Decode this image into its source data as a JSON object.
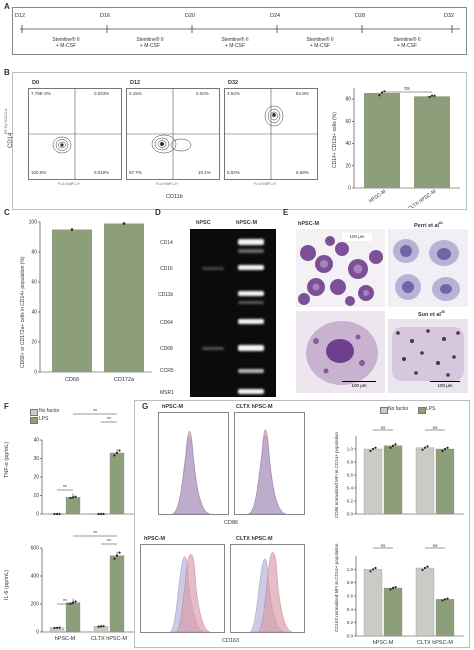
{
  "panels": {
    "A": "A",
    "B": "B",
    "C": "C",
    "D": "D",
    "E": "E",
    "F": "F",
    "G": "G"
  },
  "timeline": {
    "days": [
      "D12",
      "D16",
      "D20",
      "D24",
      "D28",
      "D32"
    ],
    "medium_line1": "Stemline® II",
    "medium_line2": "+ M-CSF"
  },
  "flow_B": {
    "titles": [
      "D0",
      "D12",
      "D32"
    ],
    "quadrants": [
      {
        "ul": "7.79E-3%",
        "ur": "0.023%",
        "ll": "100.0%",
        "lr": "0.018%"
      },
      {
        "ul": "0.15%",
        "ur": "2.02%",
        "ll": "87.7%",
        "lr": "10.1%"
      },
      {
        "ul": "3.54%",
        "ur": "84.9%",
        "ll": "5.02%",
        "lr": "6.59%"
      }
    ],
    "ylabel": "CD14",
    "xlabel": "CD11b",
    "inner_ylabel": "PE-Cy7/CD14-A",
    "inner_xlabel": "FL4-H/APC-H"
  },
  "chart_B": {
    "ylabel": "CD14+ CD11b+ cells (%)",
    "ticks": [
      "0",
      "20",
      "40",
      "60",
      "80"
    ],
    "ns": "ns"
  },
  "chart_C": {
    "ylabel": "CD68+ or CD172a+ cells in CD14+ population (%)",
    "ticks": [
      "0",
      "20",
      "40",
      "60",
      "80",
      "100"
    ]
  },
  "gel_D": {
    "col1": "hPSC",
    "col2": "hPSC-M",
    "genes": [
      "CD14",
      "CD16",
      "CD11b",
      "CD64",
      "CD68",
      "CCR5",
      "MSR1"
    ]
  },
  "micro_E": {
    "t1": "hPSC-M",
    "t2": "Perri et al",
    "t2_sup": "61",
    "t3": "Sun et al",
    "t3_sup": "40",
    "scale1": "100 μm",
    "scale2": "100 μm",
    "scale3": "100 μm"
  },
  "chart_F": {
    "legend": [
      "No factor",
      "LPS"
    ],
    "top_ylabel": "TNF-α (pg/mL)",
    "top_ticks": [
      "0",
      "10",
      "20",
      "30",
      "40"
    ],
    "bot_ylabel": "IL-6 (pg/mL)",
    "bot_ticks": [
      "0",
      "200",
      "400",
      "600"
    ],
    "sig": "**"
  },
  "hist_G": {
    "top_titles": [
      "hPSC-M",
      "CLTX hPSC-M"
    ],
    "bot_titles": [
      "hPSC-M",
      "CLTX hPSC-M"
    ],
    "legend": [
      "No factor",
      "LPS"
    ],
    "top_xlabel": "CD86",
    "bot_xlabel": "CD163",
    "right_top_ylabel": "CD86 normalized MFI in CD14+ population",
    "right_bot_ylabel": "CD163 normalized MFI in CD14+ population",
    "right_top_ticks": [
      "0.0",
      "0.2",
      "0.4",
      "0.6",
      "0.8",
      "1.0"
    ],
    "right_bot_ticks": [
      "0.0",
      "0.2",
      "0.4",
      "0.6",
      "0.8",
      "1.0"
    ],
    "ns": "ns"
  },
  "colors": {
    "green": "#8c9e7a",
    "grey": "#c9cbc5",
    "pink": "#d99aa5",
    "lav": "#a9a9d4",
    "stain": "#6e3f8c"
  },
  "chart_data": [
    {
      "id": "B",
      "type": "bar",
      "categories": [
        "hPSC-M",
        "CLTX hPSC-M"
      ],
      "values": [
        85.5,
        82.5
      ],
      "points": [
        [
          83.5,
          86,
          87
        ],
        [
          82,
          83,
          83
        ]
      ],
      "ylim": [
        0,
        90
      ],
      "ylabel": "CD14+ CD11b+ cells (%)"
    },
    {
      "id": "C",
      "type": "bar",
      "categories": [
        "CD68",
        "CD172a"
      ],
      "values": [
        95,
        99
      ],
      "ylim": [
        0,
        100
      ],
      "ylabel": "CD68+ or CD172a+ cells in CD14+ population (%)"
    },
    {
      "id": "F-top",
      "type": "bar",
      "categories": [
        "hPSC-M",
        "CLTX hPSC-M"
      ],
      "series": [
        {
          "name": "No factor",
          "values": [
            0,
            0
          ]
        },
        {
          "name": "LPS",
          "values": [
            9,
            33
          ]
        }
      ],
      "ylim": [
        0,
        40
      ],
      "ylabel": "TNF-α (pg/mL)"
    },
    {
      "id": "F-bottom",
      "type": "bar",
      "categories": [
        "hPSC-M",
        "CLTX hPSC-M"
      ],
      "series": [
        {
          "name": "No factor",
          "values": [
            30,
            40
          ]
        },
        {
          "name": "LPS",
          "values": [
            210,
            545
          ]
        }
      ],
      "ylim": [
        0,
        600
      ],
      "ylabel": "IL-6 (pg/mL)"
    },
    {
      "id": "G-top-right",
      "type": "bar",
      "categories": [
        "hPSC-M",
        "CLTX hPSC-M"
      ],
      "series": [
        {
          "name": "No factor",
          "values": [
            1.0,
            1.02
          ]
        },
        {
          "name": "LPS",
          "values": [
            1.05,
            1.0
          ]
        }
      ],
      "ylim": [
        0,
        1.2
      ],
      "ylabel": "CD86 normalized MFI in CD14+ population"
    },
    {
      "id": "G-bottom-right",
      "type": "bar",
      "categories": [
        "hPSC-M",
        "CLTX hPSC-M"
      ],
      "series": [
        {
          "name": "No factor",
          "values": [
            1.0,
            1.02
          ]
        },
        {
          "name": "LPS",
          "values": [
            0.72,
            0.55
          ]
        }
      ],
      "ylim": [
        0,
        1.2
      ],
      "ylabel": "CD163 normalized MFI in CD14+ population"
    }
  ]
}
